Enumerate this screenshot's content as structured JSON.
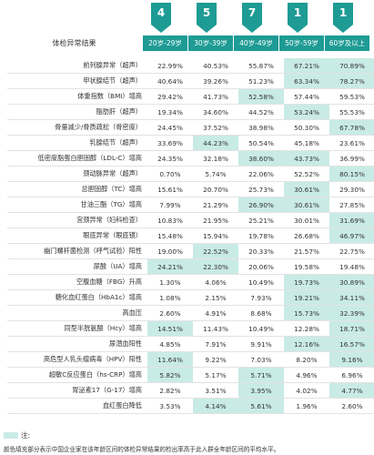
{
  "markers": [
    "4",
    "5",
    "7",
    "1",
    "1"
  ],
  "header": {
    "title": "体检异常结果",
    "columns": [
      "20岁-29岁",
      "30岁-39岁",
      "40岁-49岁",
      "50岁-59岁",
      "60岁及以上"
    ]
  },
  "rows": [
    {
      "label": "前列腺异常（超声）",
      "values": [
        "22.99%",
        "40.53%",
        "55.87%",
        "67.21%",
        "70.89%"
      ],
      "highlight": [
        3,
        4
      ]
    },
    {
      "label": "甲状腺结节（超声）",
      "values": [
        "40.64%",
        "39.26%",
        "51.23%",
        "63.34%",
        "78.27%"
      ],
      "highlight": [
        3,
        4
      ]
    },
    {
      "label": "体重指数（BMI）增高",
      "values": [
        "29.42%",
        "41.73%",
        "52.58%",
        "57.44%",
        "59.53%"
      ],
      "highlight": [
        2
      ]
    },
    {
      "label": "脂肪肝（超声）",
      "values": [
        "19.34%",
        "34.60%",
        "44.52%",
        "53.24%",
        "55.53%"
      ],
      "highlight": [
        3
      ]
    },
    {
      "label": "骨量减少/骨质疏松（骨密度）",
      "values": [
        "24.45%",
        "37.52%",
        "38.98%",
        "50.30%",
        "67.78%"
      ],
      "highlight": [
        4
      ]
    },
    {
      "label": "乳腺结节（超声）",
      "values": [
        "33.69%",
        "44.23%",
        "50.54%",
        "45.18%",
        "23.61%"
      ],
      "highlight": [
        1
      ]
    },
    {
      "label": "低密度脂蛋白胆固醇（LDL-C）增高",
      "values": [
        "24.35%",
        "32.18%",
        "38.60%",
        "43.73%",
        "36.99%"
      ],
      "highlight": [
        2,
        3
      ]
    },
    {
      "label": "颈动脉异常（超声）",
      "values": [
        "0.70%",
        "5.74%",
        "22.06%",
        "52.52%",
        "80.15%"
      ],
      "highlight": [
        4
      ]
    },
    {
      "label": "总胆固醇（TC）增高",
      "values": [
        "15.61%",
        "20.70%",
        "25.73%",
        "30.61%",
        "29.30%"
      ],
      "highlight": [
        3
      ]
    },
    {
      "label": "甘油三酯（TG）增高",
      "values": [
        "7.99%",
        "21.29%",
        "26.90%",
        "30.61%",
        "27.85%"
      ],
      "highlight": [
        2,
        3
      ]
    },
    {
      "label": "宫颈异常（妇科检查）",
      "values": [
        "10.83%",
        "21.95%",
        "25.21%",
        "30.01%",
        "31.69%"
      ],
      "highlight": [
        4
      ]
    },
    {
      "label": "眼底异常（眼底镜）",
      "values": [
        "15.48%",
        "15.94%",
        "19.78%",
        "26.68%",
        "46.97%"
      ],
      "highlight": [
        4
      ]
    },
    {
      "label": "幽门螺杆菌检测（呼气试验）阳性",
      "values": [
        "19.00%",
        "22.52%",
        "20.33%",
        "21.57%",
        "22.75%"
      ],
      "highlight": [
        1
      ]
    },
    {
      "label": "尿酸（UA）增高",
      "values": [
        "24.21%",
        "22.30%",
        "20.06%",
        "19.58%",
        "19.48%"
      ],
      "highlight": [
        0,
        1
      ]
    },
    {
      "label": "空腹血糖（FBG）升高",
      "values": [
        "1.30%",
        "4.06%",
        "10.49%",
        "19.73%",
        "30.89%"
      ],
      "highlight": [
        3,
        4
      ]
    },
    {
      "label": "糖化血红蛋白（HbA1c）增高",
      "values": [
        "1.08%",
        "2.15%",
        "7.93%",
        "19.21%",
        "34.11%"
      ],
      "highlight": [
        3,
        4
      ]
    },
    {
      "label": "高血压",
      "values": [
        "2.60%",
        "4.91%",
        "8.68%",
        "15.73%",
        "32.39%"
      ],
      "highlight": [
        3,
        4
      ]
    },
    {
      "label": "同型半胱氨酸（Hcy）增高",
      "values": [
        "14.51%",
        "11.43%",
        "10.49%",
        "12.28%",
        "18.71%"
      ],
      "highlight": [
        0,
        4
      ]
    },
    {
      "label": "尿潜血阳性",
      "values": [
        "4.85%",
        "7.91%",
        "9.91%",
        "12.16%",
        "16.57%"
      ],
      "highlight": [
        3,
        4
      ]
    },
    {
      "label": "高危型人乳头瘤病毒（HPV）阳性",
      "values": [
        "11.64%",
        "9.22%",
        "7.03%",
        "8.20%",
        "9.16%"
      ],
      "highlight": [
        0,
        4
      ]
    },
    {
      "label": "超敏C反应蛋白（hs-CRP）增高",
      "values": [
        "5.82%",
        "5.17%",
        "5.71%",
        "4.96%",
        "6.96%"
      ],
      "highlight": [
        0,
        2
      ]
    },
    {
      "label": "胃泌素17（G-17）增高",
      "values": [
        "2.82%",
        "3.51%",
        "3.95%",
        "4.02%",
        "4.77%"
      ],
      "highlight": [
        2,
        4
      ]
    },
    {
      "label": "血红蛋白降低",
      "values": [
        "3.53%",
        "4.14%",
        "5.61%",
        "1.96%",
        "2.60%"
      ],
      "highlight": [
        1,
        2
      ]
    }
  ],
  "note": {
    "title": "注:",
    "text": "颜色填充部分表示中国企业家在该年龄区间的体检异常结果的检出率高于此人群全年龄区间的平均水平。"
  },
  "colors": {
    "accent": "#1d9b94",
    "highlight": "#c9ebe6"
  }
}
